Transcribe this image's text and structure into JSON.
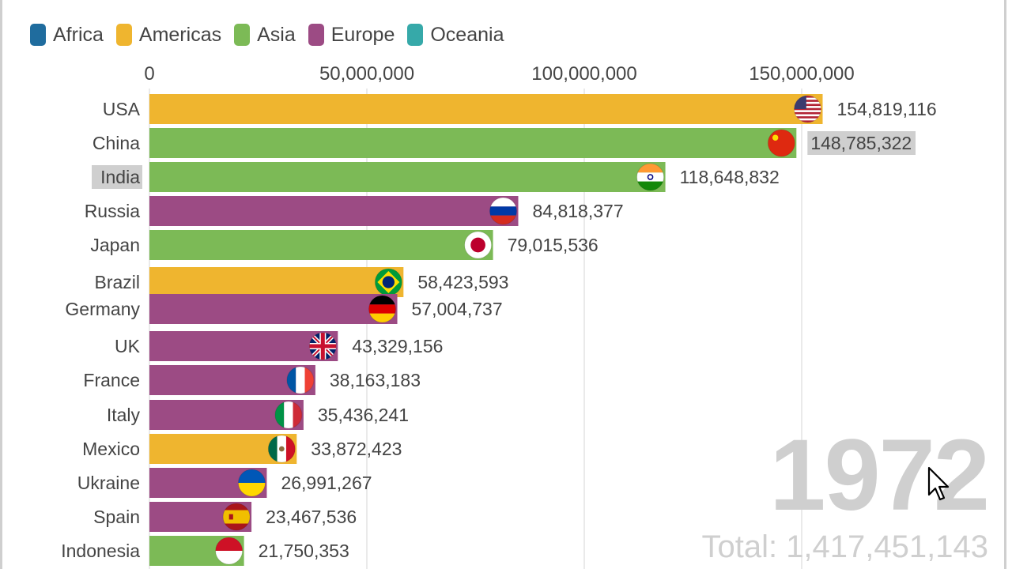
{
  "legend": [
    {
      "label": "Africa",
      "color": "#1f6c9e"
    },
    {
      "label": "Americas",
      "color": "#efb52f"
    },
    {
      "label": "Asia",
      "color": "#7cba56"
    },
    {
      "label": "Europe",
      "color": "#9c4b84"
    },
    {
      "label": "Oceania",
      "color": "#36a9a9"
    }
  ],
  "year": "1972",
  "total": "Total: 1,417,451,143",
  "chart_data": {
    "type": "bar",
    "orientation": "horizontal",
    "xlim": [
      0,
      170000000
    ],
    "ticks": [
      0,
      50000000,
      100000000,
      150000000
    ],
    "tick_labels": [
      "0",
      "50,000,000",
      "100,000,000",
      "150,000,000"
    ],
    "grid": true,
    "legend_position": "top-left",
    "bars": [
      {
        "label": "USA",
        "value": 154819116,
        "value_label": "154,819,116",
        "region": "Americas",
        "flag": "usa-flag-icon"
      },
      {
        "label": "China",
        "value": 148785322,
        "value_label": "148,785,322",
        "region": "Asia",
        "flag": "china-flag-icon"
      },
      {
        "label": "India",
        "value": 118648832,
        "value_label": "118,648,832",
        "region": "Asia",
        "flag": "india-flag-icon"
      },
      {
        "label": "Russia",
        "value": 84818377,
        "value_label": "84,818,377",
        "region": "Europe",
        "flag": "russia-flag-icon"
      },
      {
        "label": "Japan",
        "value": 79015536,
        "value_label": "79,015,536",
        "region": "Asia",
        "flag": "japan-flag-icon"
      },
      {
        "label": "Brazil",
        "value": 58423593,
        "value_label": "58,423,593",
        "region": "Americas",
        "flag": "brazil-flag-icon"
      },
      {
        "label": "Germany",
        "value": 57004737,
        "value_label": "57,004,737",
        "region": "Europe",
        "flag": "germany-flag-icon"
      },
      {
        "label": "UK",
        "value": 43329156,
        "value_label": "43,329,156",
        "region": "Europe",
        "flag": "uk-flag-icon"
      },
      {
        "label": "France",
        "value": 38163183,
        "value_label": "38,163,183",
        "region": "Europe",
        "flag": "france-flag-icon"
      },
      {
        "label": "Italy",
        "value": 35436241,
        "value_label": "35,436,241",
        "region": "Europe",
        "flag": "italy-flag-icon"
      },
      {
        "label": "Mexico",
        "value": 33872423,
        "value_label": "33,872,423",
        "region": "Americas",
        "flag": "mexico-flag-icon"
      },
      {
        "label": "Ukraine",
        "value": 26991267,
        "value_label": "26,991,267",
        "region": "Europe",
        "flag": "ukraine-flag-icon"
      },
      {
        "label": "Spain",
        "value": 23467536,
        "value_label": "23,467,536",
        "region": "Europe",
        "flag": "spain-flag-icon"
      },
      {
        "label": "Indonesia",
        "value": 21750353,
        "value_label": "21,750,353",
        "region": "Asia",
        "flag": "indonesia-flag-icon"
      }
    ],
    "highlighted_labels": [
      "India",
      "148,785,322"
    ]
  }
}
